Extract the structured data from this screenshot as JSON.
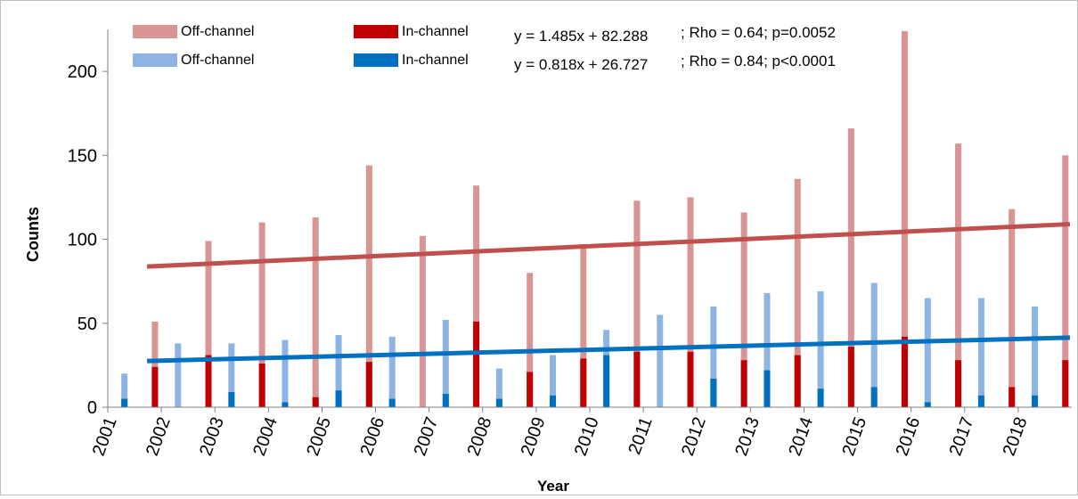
{
  "chart_data": {
    "type": "bar",
    "xlabel": "Year",
    "ylabel": "Counts",
    "ylim": [
      0,
      225
    ],
    "yticks": [
      0,
      50,
      100,
      150,
      200
    ],
    "categories": [
      "2001",
      "2002",
      "2003",
      "2004",
      "2005",
      "2006",
      "2007",
      "2008",
      "2009",
      "2010",
      "2011",
      "2012",
      "2013",
      "2014",
      "2015",
      "2016",
      "2017",
      "2018"
    ],
    "legend_position": "top",
    "series": [
      {
        "name": "Off-channel",
        "group": "red",
        "color": "#d99594",
        "values": [
          51,
          99,
          110,
          113,
          144,
          102,
          132,
          80,
          97,
          123,
          125,
          116,
          136,
          166,
          224,
          157,
          118,
          150
        ]
      },
      {
        "name": "In-channel",
        "group": "red",
        "color": "#c00000",
        "values": [
          24,
          31,
          26,
          6,
          27,
          0,
          51,
          21,
          29,
          33,
          33,
          28,
          31,
          36,
          42,
          28,
          12,
          28
        ]
      },
      {
        "name": "Off-channel",
        "group": "blue",
        "color": "#8db4e2",
        "values": [
          20,
          38,
          38,
          40,
          43,
          42,
          52,
          23,
          31,
          46,
          55,
          60,
          68,
          69,
          74,
          65,
          65,
          60
        ]
      },
      {
        "name": "In-channel",
        "group": "blue",
        "color": "#0070c0",
        "values": [
          5,
          0,
          9,
          3,
          10,
          5,
          8,
          5,
          7,
          31,
          0,
          17,
          22,
          11,
          12,
          3,
          7,
          7
        ]
      }
    ],
    "trendlines": [
      {
        "group": "red",
        "color": "#c0504d",
        "slope": 1.485,
        "intercept": 82.288,
        "equation": "y = 1.485x + 82.288",
        "stats": "; Rho = 0.64; p=0.0052"
      },
      {
        "group": "blue",
        "color": "#0070c0",
        "slope": 0.818,
        "intercept": 26.727,
        "equation": "y = 0.818x + 26.727",
        "stats": "; Rho = 0.84; p<0.0001"
      }
    ]
  }
}
